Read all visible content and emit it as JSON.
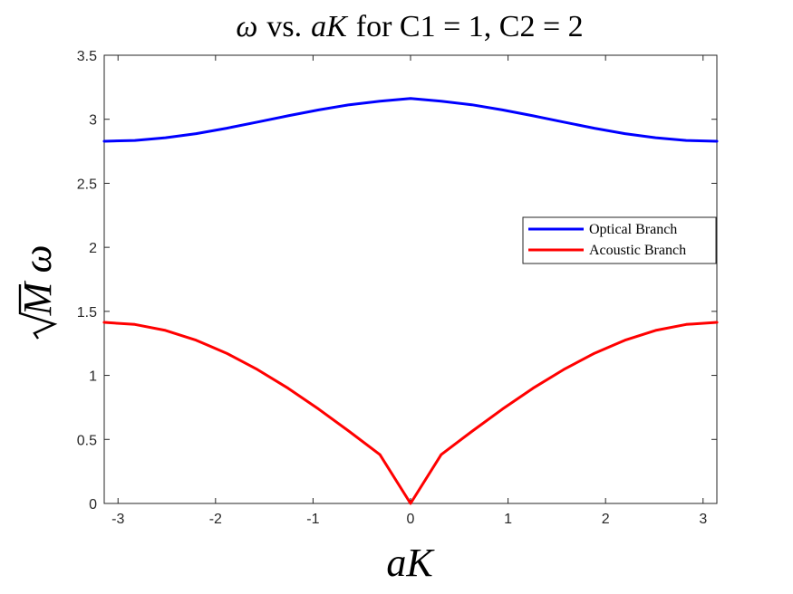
{
  "chart_data": {
    "type": "line",
    "title_prefix": "ω",
    "title_vs": "vs.",
    "title_var": "aK",
    "title_suffix": "for C1 = 1, C2 = 2",
    "xlabel": "aK",
    "ylabel_radicand": "M",
    "ylabel_var": "ω",
    "xlim": [
      -3.14159,
      3.14159
    ],
    "ylim": [
      0,
      3.5
    ],
    "xticks": [
      -3,
      -2,
      -1,
      0,
      1,
      2,
      3
    ],
    "xtick_labels": [
      "-3",
      "-2",
      "-1",
      "0",
      "1",
      "2",
      "3"
    ],
    "yticks": [
      0,
      0.5,
      1,
      1.5,
      2,
      2.5,
      3,
      3.5
    ],
    "ytick_labels": [
      "0",
      "0.5",
      "1",
      "1.5",
      "2",
      "2.5",
      "3",
      "3.5"
    ],
    "grid": false,
    "legend_position": "right",
    "series": [
      {
        "name": "Optical Branch",
        "color": "#0000ff",
        "x": [
          -3.1416,
          -2.8274,
          -2.5133,
          -2.1991,
          -1.885,
          -1.5708,
          -1.2566,
          -0.9425,
          -0.6283,
          -0.3142,
          0,
          0.3142,
          0.6283,
          0.9425,
          1.2566,
          1.5708,
          1.885,
          2.1991,
          2.5133,
          2.8274,
          3.1416
        ],
        "values": [
          2.828,
          2.835,
          2.856,
          2.888,
          2.93,
          2.978,
          3.027,
          3.073,
          3.113,
          3.141,
          3.162,
          3.141,
          3.113,
          3.073,
          3.027,
          2.978,
          2.93,
          2.888,
          2.856,
          2.835,
          2.828
        ]
      },
      {
        "name": "Acoustic Branch",
        "color": "#ff0000",
        "x": [
          -3.1416,
          -2.8274,
          -2.5133,
          -2.1991,
          -1.885,
          -1.5708,
          -1.2566,
          -0.9425,
          -0.6283,
          -0.3142,
          0,
          0.3142,
          0.6283,
          0.9425,
          1.2566,
          1.5708,
          1.885,
          2.1991,
          2.5133,
          2.8274,
          3.1416
        ],
        "values": [
          1.414,
          1.398,
          1.351,
          1.275,
          1.172,
          1.046,
          0.9,
          0.737,
          0.562,
          0.381,
          0,
          0.381,
          0.562,
          0.737,
          0.9,
          1.046,
          1.172,
          1.275,
          1.351,
          1.398,
          1.414
        ]
      }
    ]
  }
}
